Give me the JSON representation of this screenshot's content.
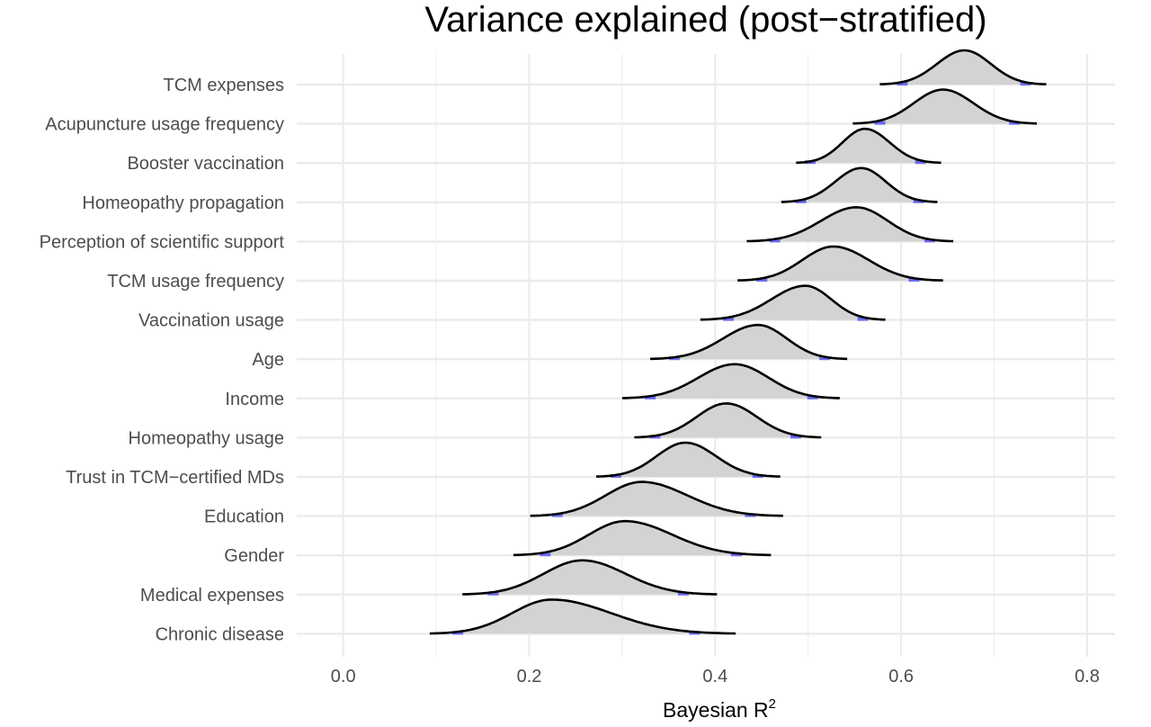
{
  "chart_data": {
    "type": "ridgeline",
    "title": "Variance explained (post−stratified)",
    "xlabel": "Bayesian R",
    "xlabel_superscript": "2",
    "ylabel": "",
    "xlim": [
      -0.05,
      0.83
    ],
    "x_ticks": [
      "0.0",
      "0.2",
      "0.4",
      "0.6",
      "0.8"
    ],
    "x_tick_values": [
      0.0,
      0.2,
      0.4,
      0.6,
      0.8
    ],
    "grid": true,
    "fill_color": "#d3d3d3",
    "interval_color": "#6b6bf0",
    "line_color": "#000000",
    "series": [
      {
        "name": "TCM expenses",
        "min": 0.577,
        "lo": 0.607,
        "mode": 0.668,
        "hi": 0.728,
        "max": 0.756
      },
      {
        "name": "Acupuncture usage frequency",
        "min": 0.548,
        "lo": 0.583,
        "mode": 0.645,
        "hi": 0.716,
        "max": 0.746
      },
      {
        "name": "Booster vaccination",
        "min": 0.487,
        "lo": 0.508,
        "mode": 0.561,
        "hi": 0.615,
        "max": 0.643
      },
      {
        "name": "Homeopathy propagation",
        "min": 0.471,
        "lo": 0.498,
        "mode": 0.557,
        "hi": 0.613,
        "max": 0.639
      },
      {
        "name": "Perception of scientific support",
        "min": 0.434,
        "lo": 0.47,
        "mode": 0.552,
        "hi": 0.625,
        "max": 0.656
      },
      {
        "name": "TCM usage frequency",
        "min": 0.424,
        "lo": 0.456,
        "mode": 0.527,
        "hi": 0.608,
        "max": 0.645
      },
      {
        "name": "Vaccination usage",
        "min": 0.384,
        "lo": 0.42,
        "mode": 0.497,
        "hi": 0.553,
        "max": 0.583
      },
      {
        "name": "Age",
        "min": 0.33,
        "lo": 0.362,
        "mode": 0.446,
        "hi": 0.512,
        "max": 0.542
      },
      {
        "name": "Income",
        "min": 0.3,
        "lo": 0.336,
        "mode": 0.421,
        "hi": 0.499,
        "max": 0.534
      },
      {
        "name": "Homeopathy usage",
        "min": 0.313,
        "lo": 0.341,
        "mode": 0.412,
        "hi": 0.481,
        "max": 0.514
      },
      {
        "name": "Trust in TCM−certified MDs",
        "min": 0.272,
        "lo": 0.299,
        "mode": 0.368,
        "hi": 0.44,
        "max": 0.47
      },
      {
        "name": "Education",
        "min": 0.201,
        "lo": 0.236,
        "mode": 0.321,
        "hi": 0.432,
        "max": 0.473
      },
      {
        "name": "Gender",
        "min": 0.183,
        "lo": 0.223,
        "mode": 0.303,
        "hi": 0.417,
        "max": 0.46
      },
      {
        "name": "Medical expenses",
        "min": 0.128,
        "lo": 0.167,
        "mode": 0.257,
        "hi": 0.36,
        "max": 0.402
      },
      {
        "name": "Chronic disease",
        "min": 0.093,
        "lo": 0.129,
        "mode": 0.224,
        "hi": 0.372,
        "max": 0.422
      }
    ]
  }
}
